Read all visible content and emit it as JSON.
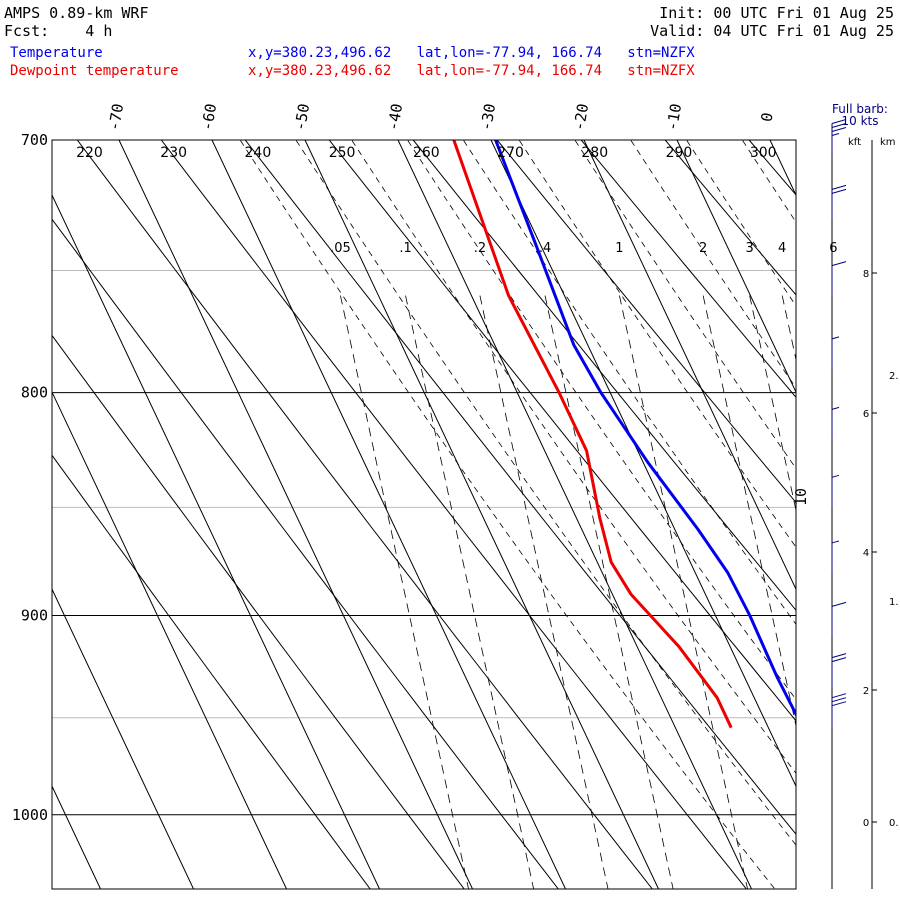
{
  "header": {
    "title": "AMPS 0.89-km WRF",
    "init": "Init: 00 UTC Fri 01 Aug 25",
    "fcst": "Fcst:    4 h",
    "valid": "Valid: 04 UTC Fri 01 Aug 25",
    "temp_label": "Temperature",
    "dew_label": "Dewpoint temperature",
    "temp_info": "x,y=380.23,496.62   lat,lon=-77.94, 166.74   stn=NZFX",
    "dew_info": "x,y=380.23,496.62   lat,lon=-77.94, 166.74   stn=NZFX"
  },
  "colors": {
    "temperature": "#0000ee",
    "dewpoint": "#ee0000",
    "grid": "#000000",
    "minor_grid": "#bbbbbb"
  },
  "wind_panel": {
    "legend_line1": "Full barb:",
    "legend_line2": "10 kts",
    "unit_left": "kft",
    "unit_right": "km",
    "kft_ticks": [
      "8",
      "6",
      "4",
      "2",
      "0"
    ],
    "km_ticks": [
      "2.",
      "1.",
      "0."
    ]
  },
  "chart_data": {
    "type": "line",
    "subtype": "skew-T log-p",
    "yscale": "log",
    "ylim": [
      1040,
      700
    ],
    "y_ticks": [
      700,
      800,
      900,
      1000
    ],
    "temp_ticks": [
      "-70",
      "-60",
      "-50",
      "-40",
      "-30",
      "-20",
      "-10",
      "0"
    ],
    "dry_adiabat_labels": [
      "220",
      "230",
      "240",
      "250",
      "260",
      "270",
      "280",
      "290",
      "300"
    ],
    "mixing_ratio_labels": [
      ".05",
      ".1",
      ".2",
      ".4",
      "1",
      "2",
      "3",
      "4",
      "6"
    ],
    "side_label": "10",
    "series": [
      {
        "name": "Temperature",
        "color": "#0000ee",
        "points": [
          [
            700,
            -29.5
          ],
          [
            740,
            -30.5
          ],
          [
            780,
            -31.5
          ],
          [
            800,
            -31.0
          ],
          [
            830,
            -29.5
          ],
          [
            860,
            -27.5
          ],
          [
            880,
            -26.5
          ],
          [
            900,
            -26.3
          ],
          [
            930,
            -26.5
          ],
          [
            955,
            -26.3
          ]
        ]
      },
      {
        "name": "Dewpoint temperature",
        "color": "#ee0000",
        "points": [
          [
            700,
            -34.0
          ],
          [
            760,
            -36.0
          ],
          [
            800,
            -35.5
          ],
          [
            825,
            -35.5
          ],
          [
            855,
            -37.5
          ],
          [
            875,
            -38.5
          ],
          [
            890,
            -38.0
          ],
          [
            915,
            -35.5
          ],
          [
            940,
            -34.0
          ],
          [
            955,
            -34.0
          ]
        ]
      }
    ],
    "wind_barbs": [
      {
        "p": 705,
        "speed": 35
      },
      {
        "p": 730,
        "speed": 20
      },
      {
        "p": 760,
        "speed": 10
      },
      {
        "p": 790,
        "speed": 5
      },
      {
        "p": 820,
        "speed": 5
      },
      {
        "p": 850,
        "speed": 5
      },
      {
        "p": 880,
        "speed": 5
      },
      {
        "p": 910,
        "speed": 10
      },
      {
        "p": 935,
        "speed": 20
      },
      {
        "p": 955,
        "speed": 30
      }
    ]
  }
}
